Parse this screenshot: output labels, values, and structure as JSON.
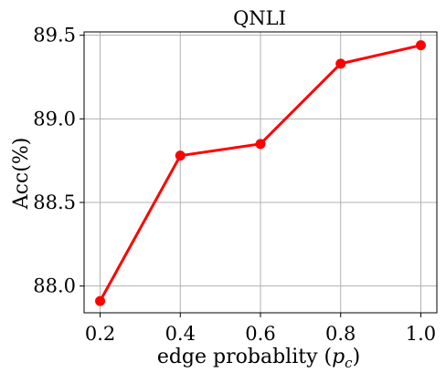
{
  "chart_data": {
    "type": "line",
    "title": "QNLI",
    "xlabel": "edge probablity (p_c)",
    "xlabel_prefix": "edge probablity (",
    "xlabel_var": "p",
    "xlabel_sub": "c",
    "xlabel_suffix": ")",
    "ylabel": "Acc(%)",
    "x": [
      0.2,
      0.4,
      0.6,
      0.8,
      1.0
    ],
    "series": [
      {
        "values": [
          87.91,
          88.78,
          88.85,
          89.33,
          89.44
        ]
      }
    ],
    "xlim": [
      0.16,
      1.04
    ],
    "ylim": [
      87.84,
      89.52
    ],
    "xticks": [
      "0.2",
      "0.4",
      "0.6",
      "0.8",
      "1.0"
    ],
    "yticks": [
      "88.0",
      "88.5",
      "89.0",
      "89.5"
    ],
    "grid": true,
    "line_color": "#ff0000",
    "grid_color": "#b0b0b0"
  }
}
